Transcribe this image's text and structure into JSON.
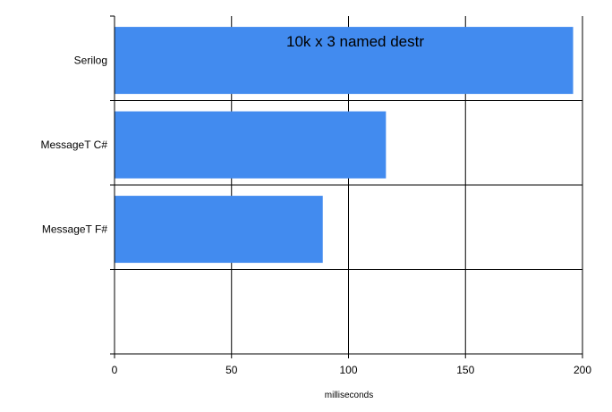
{
  "chart_data": {
    "type": "bar",
    "orientation": "horizontal",
    "title": "10k x 3 named destr",
    "xlabel": "milliseconds",
    "ylabel": "",
    "categories": [
      "Serilog",
      "MessageT C#",
      "MessageT F#"
    ],
    "values": [
      196,
      116,
      89
    ],
    "xlim": [
      0,
      200
    ],
    "xticks": [
      0,
      50,
      100,
      150,
      200
    ],
    "grid": true,
    "legend": "none",
    "bar_color": "#428bef"
  }
}
